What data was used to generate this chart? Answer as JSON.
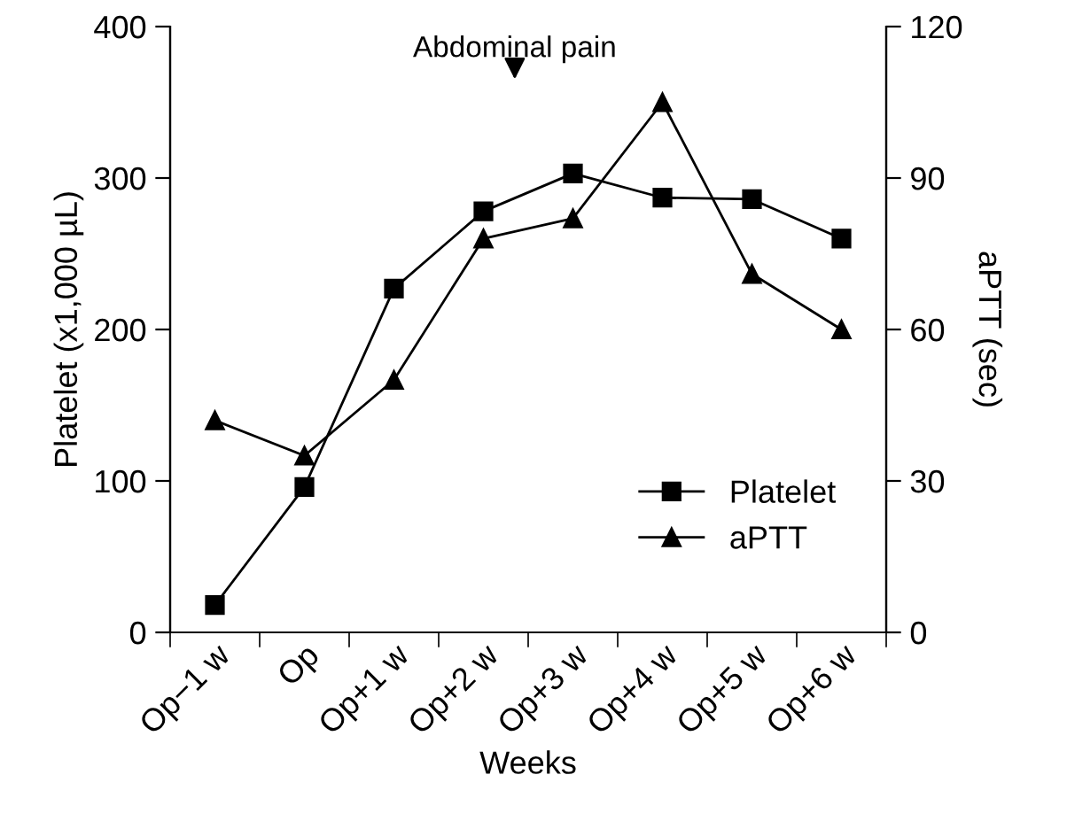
{
  "chart_data": {
    "type": "line",
    "xlabel": "Weeks",
    "ylabel": "Platelet (x1,000 µL)",
    "y2label": "aPTT (sec)",
    "categories": [
      "Op−1 w",
      "Op",
      "Op+1 w",
      "Op+2 w",
      "Op+3 w",
      "Op+4 w",
      "Op+5 w",
      "Op+6 w"
    ],
    "series": [
      {
        "name": "Platelet",
        "color": "#000000",
        "marker": "square",
        "values": [
          18,
          96,
          227,
          278,
          303,
          287,
          286,
          260
        ]
      },
      {
        "name": "aPTT",
        "color": "#000000",
        "marker": "triangle",
        "axis": "y2",
        "values": [
          42,
          35,
          50,
          78,
          82,
          105,
          71,
          60
        ]
      }
    ],
    "ylim": [
      0,
      400
    ],
    "yticks": [
      0,
      100,
      200,
      300,
      400
    ],
    "y2lim": [
      0,
      120
    ],
    "y2ticks": [
      0,
      30,
      60,
      90,
      120
    ],
    "annotations": [
      "Abdominal pain"
    ],
    "legend": "bottom right",
    "grid": false,
    "line_style": "solid"
  }
}
